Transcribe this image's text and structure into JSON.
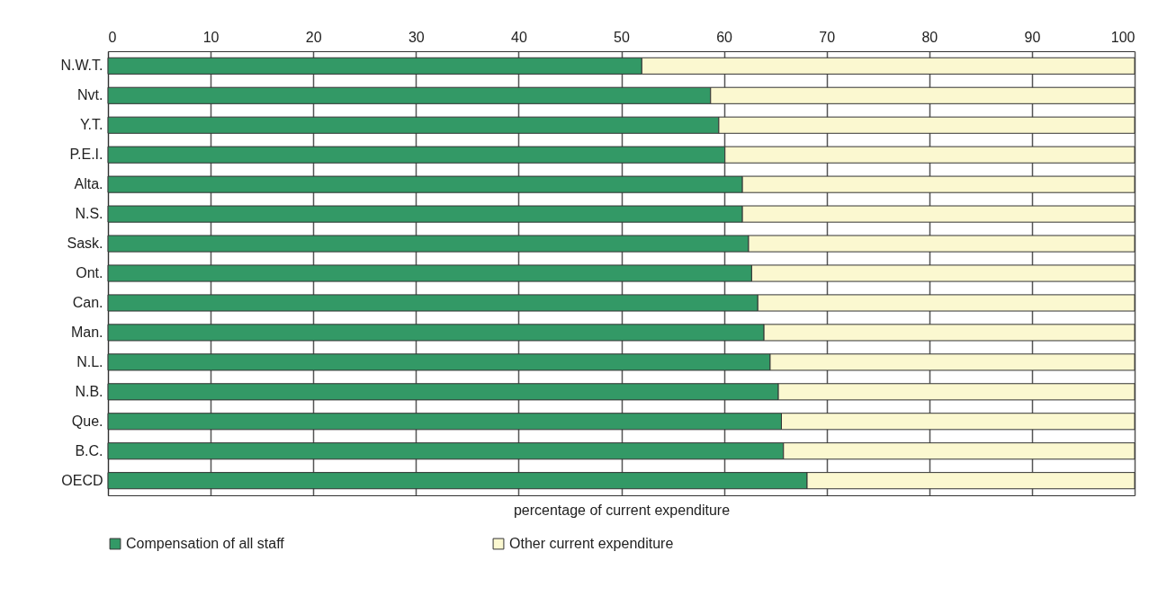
{
  "chart_data": {
    "type": "bar",
    "orientation": "horizontal",
    "stacked": true,
    "categories": [
      "N.W.T.",
      "Nvt.",
      "Y.T.",
      "P.E.I.",
      "Alta.",
      "N.S.",
      "Sask.",
      "Ont.",
      "Can.",
      "Man.",
      "N.L.",
      "N.B.",
      "Que.",
      "B.C.",
      "OECD"
    ],
    "series": [
      {
        "name": "Compensation of all staff",
        "color": "#339966",
        "values": [
          52.0,
          58.7,
          59.5,
          60.1,
          61.8,
          61.8,
          62.4,
          62.7,
          63.3,
          63.9,
          64.5,
          65.3,
          65.6,
          65.8,
          68.1
        ]
      },
      {
        "name": "Other current expenditure",
        "color": "#fbf8d0",
        "values": [
          48.0,
          41.3,
          40.5,
          39.9,
          38.2,
          38.2,
          37.6,
          37.3,
          36.7,
          36.1,
          35.5,
          34.7,
          34.4,
          34.2,
          31.9
        ]
      }
    ],
    "xlabel": "percentage of current expenditure",
    "xlim": [
      0,
      100
    ],
    "xticks": [
      0,
      10,
      20,
      30,
      40,
      50,
      60,
      70,
      80,
      90,
      100
    ],
    "grid": "x",
    "legend": "bottom"
  }
}
